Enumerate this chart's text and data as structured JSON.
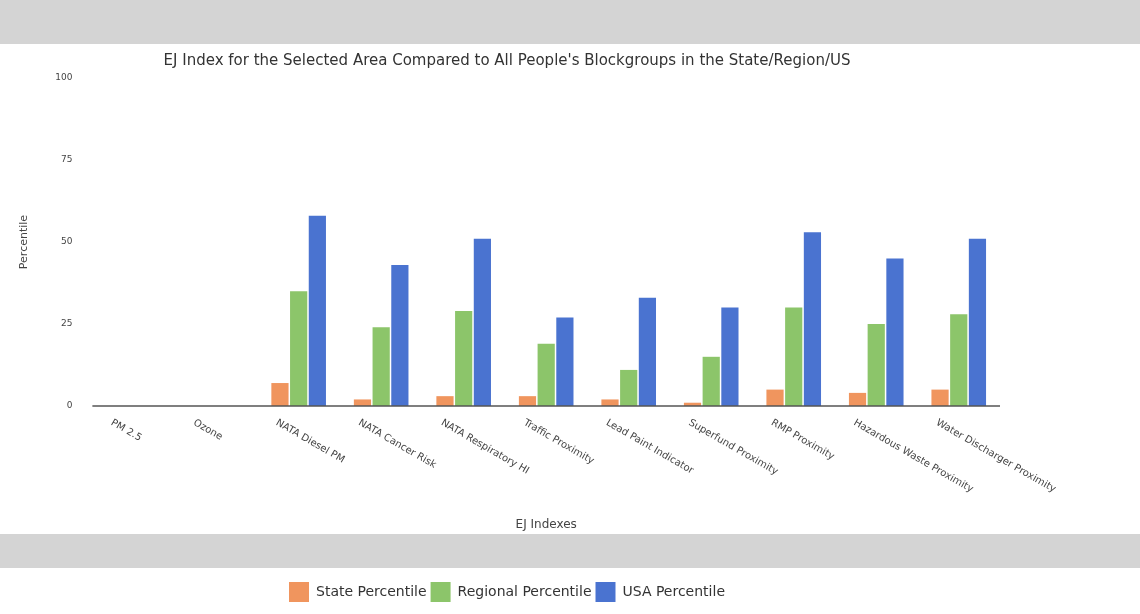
{
  "chart_data": {
    "type": "bar",
    "title": "EJ Index for the Selected Area Compared to All People's Blockgroups in the State/Region/US",
    "xlabel": "EJ Indexes",
    "ylabel": "Percentile",
    "categories": [
      "PM 2.5",
      "Ozone",
      "NATA Diesel PM",
      "NATA Cancer Risk",
      "NATA Respiratory HI",
      "Traffic Proximity",
      "Lead Paint Indicator",
      "Superfund Proximity",
      "RMP Proximity",
      "Hazardous Waste Proximity",
      "Water Discharger Proximity"
    ],
    "series": [
      {
        "name": "State Percentile",
        "color": "#f0955e",
        "values": [
          null,
          null,
          7,
          2,
          3,
          3,
          2,
          1,
          5,
          4,
          5
        ]
      },
      {
        "name": "Regional Percentile",
        "color": "#8cc56a",
        "values": [
          null,
          null,
          35,
          24,
          29,
          19,
          11,
          15,
          30,
          25,
          28
        ]
      },
      {
        "name": "USA Percentile",
        "color": "#4a73d0",
        "values": [
          null,
          null,
          58,
          43,
          51,
          27,
          33,
          30,
          53,
          45,
          51
        ]
      }
    ],
    "ylim": [
      0,
      100
    ],
    "yticks": [
      0,
      25,
      50,
      75,
      100
    ],
    "grid": false,
    "legend": "bottom"
  }
}
